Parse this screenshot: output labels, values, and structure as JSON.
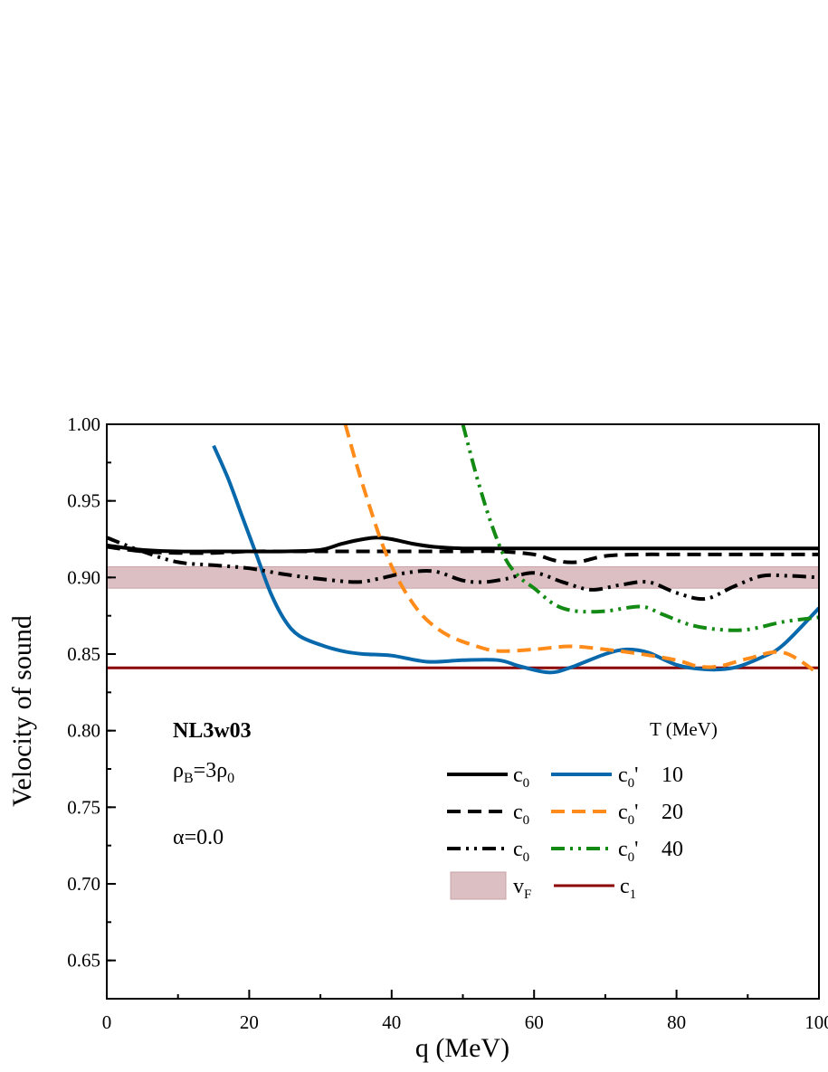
{
  "chart_data": {
    "type": "line",
    "xlabel": "q (MeV)",
    "ylabel": "Velocity of sound",
    "xlim": [
      0,
      100
    ],
    "ylim": [
      0.625,
      1.0
    ],
    "x_ticks": [
      0,
      20,
      40,
      60,
      80,
      100
    ],
    "x_tick_labels": [
      "0",
      "20",
      "40",
      "60",
      "80",
      "100"
    ],
    "y_ticks": [
      0.65,
      0.7,
      0.75,
      0.8,
      0.85,
      0.9,
      0.95,
      1.0
    ],
    "y_tick_labels": [
      "0.65",
      "0.70",
      "0.75",
      "0.80",
      "0.85",
      "0.90",
      "0.95",
      "1.00"
    ],
    "annotations": {
      "model": "NL3w03",
      "density_main": "ρ",
      "density_sub": "B",
      "density_rest": "=3ρ",
      "density_sub2": "0",
      "alpha": "α=0.0"
    },
    "legend": {
      "title": "T (MeV)",
      "c0_main": "c",
      "c0_sub": "0",
      "c0p_suffix": "'",
      "vF_main": "v",
      "vF_sub": "F",
      "c1_main": "c",
      "c1_sub": "1",
      "rows": [
        {
          "T": "10"
        },
        {
          "T": "20"
        },
        {
          "T": "40"
        }
      ]
    },
    "colors": {
      "c0": "#000000",
      "c0p_T10": "#0868ac",
      "c0p_T20": "#ff8c1a",
      "c0p_T40": "#138a13",
      "c1": "#8b0000",
      "vF_band": "#dcbfc2",
      "vF_edge": "#c9a3a7"
    },
    "vF_band": [
      0.893,
      0.907
    ],
    "c1_value": 0.841,
    "series": [
      {
        "name": "c0 (T=10)",
        "style": "solid",
        "color": "#000000",
        "x": [
          0,
          5,
          10,
          15,
          20,
          25,
          30,
          33,
          36,
          38,
          40,
          43,
          46,
          50,
          55,
          60,
          70,
          80,
          90,
          100
        ],
        "y": [
          0.921,
          0.918,
          0.917,
          0.917,
          0.917,
          0.917,
          0.918,
          0.922,
          0.925,
          0.926,
          0.925,
          0.922,
          0.92,
          0.919,
          0.919,
          0.919,
          0.919,
          0.919,
          0.919,
          0.919
        ]
      },
      {
        "name": "c0' (T=10)",
        "style": "solid",
        "color": "#0868ac",
        "x": [
          15,
          17,
          19,
          21,
          23,
          25,
          27,
          30,
          33,
          36,
          40,
          45,
          50,
          55,
          58,
          62,
          65,
          70,
          73,
          76,
          80,
          84,
          88,
          92,
          95,
          100
        ],
        "y": [
          0.986,
          0.965,
          0.94,
          0.915,
          0.89,
          0.872,
          0.862,
          0.856,
          0.852,
          0.85,
          0.849,
          0.845,
          0.846,
          0.846,
          0.842,
          0.838,
          0.841,
          0.85,
          0.853,
          0.851,
          0.843,
          0.84,
          0.841,
          0.848,
          0.856,
          0.88
        ]
      },
      {
        "name": "c0 (T=20)",
        "style": "dash",
        "color": "#000000",
        "x": [
          0,
          5,
          10,
          15,
          20,
          25,
          30,
          40,
          50,
          55,
          60,
          63,
          66,
          70,
          75,
          80,
          85,
          90,
          95,
          100
        ],
        "y": [
          0.92,
          0.917,
          0.916,
          0.916,
          0.917,
          0.917,
          0.917,
          0.917,
          0.917,
          0.917,
          0.915,
          0.911,
          0.91,
          0.914,
          0.915,
          0.915,
          0.915,
          0.915,
          0.915,
          0.915
        ]
      },
      {
        "name": "c0' (T=20)",
        "style": "dash",
        "color": "#ff8c1a",
        "x": [
          33.5,
          35,
          37,
          39,
          41,
          43,
          45,
          48,
          52,
          55,
          60,
          65,
          70,
          75,
          80,
          83,
          86,
          90,
          95,
          100
        ],
        "y": [
          1.0,
          0.975,
          0.945,
          0.918,
          0.898,
          0.883,
          0.872,
          0.862,
          0.855,
          0.852,
          0.853,
          0.855,
          0.853,
          0.85,
          0.846,
          0.842,
          0.842,
          0.847,
          0.851,
          0.837
        ]
      },
      {
        "name": "c0 (T=40)",
        "style": "dashdotdot",
        "color": "#000000",
        "x": [
          0,
          5,
          10,
          15,
          20,
          25,
          30,
          35,
          38,
          42,
          46,
          50,
          53,
          56,
          60,
          64,
          68,
          72,
          76,
          80,
          84,
          88,
          92,
          96,
          100
        ],
        "y": [
          0.926,
          0.917,
          0.91,
          0.908,
          0.906,
          0.902,
          0.899,
          0.897,
          0.899,
          0.903,
          0.904,
          0.898,
          0.897,
          0.899,
          0.903,
          0.897,
          0.892,
          0.895,
          0.897,
          0.89,
          0.886,
          0.894,
          0.901,
          0.901,
          0.9
        ]
      },
      {
        "name": "c0' (T=40)",
        "style": "dashdotdot",
        "color": "#138a13",
        "x": [
          50,
          52,
          54,
          56,
          58,
          60,
          63,
          66,
          70,
          75,
          78,
          82,
          86,
          90,
          95,
          100
        ],
        "y": [
          1.0,
          0.965,
          0.935,
          0.912,
          0.9,
          0.893,
          0.882,
          0.878,
          0.878,
          0.881,
          0.876,
          0.869,
          0.866,
          0.866,
          0.871,
          0.874
        ]
      }
    ]
  }
}
